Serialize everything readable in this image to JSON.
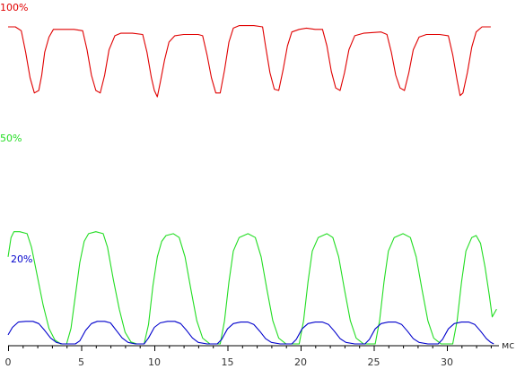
{
  "chart_data": {
    "type": "line",
    "title": "",
    "xlabel": "",
    "ylabel": "",
    "x_unit": "мс",
    "xlim": [
      0,
      33.5
    ],
    "xticks": [
      {
        "value": 0,
        "label": "0"
      },
      {
        "value": 5,
        "label": "5"
      },
      {
        "value": 10,
        "label": "10"
      },
      {
        "value": 15,
        "label": "15"
      },
      {
        "value": 20,
        "label": "20"
      },
      {
        "value": 25,
        "label": "25"
      },
      {
        "value": 30,
        "label": "30"
      }
    ],
    "grid": false,
    "legend": "none",
    "series": [
      {
        "name": "100%",
        "color": "#e00000",
        "values": [
          [
            0.0,
            100
          ],
          [
            0.5,
            100
          ],
          [
            0.9,
            97
          ],
          [
            1.2,
            80
          ],
          [
            1.5,
            60
          ],
          [
            1.8,
            48
          ],
          [
            2.1,
            50
          ],
          [
            2.3,
            62
          ],
          [
            2.5,
            80
          ],
          [
            2.8,
            92
          ],
          [
            3.1,
            98
          ],
          [
            3.6,
            98
          ],
          [
            4.5,
            98
          ],
          [
            5.1,
            97
          ],
          [
            5.4,
            82
          ],
          [
            5.7,
            62
          ],
          [
            6.0,
            50
          ],
          [
            6.3,
            48
          ],
          [
            6.6,
            62
          ],
          [
            6.9,
            82
          ],
          [
            7.3,
            93
          ],
          [
            7.7,
            95
          ],
          [
            8.5,
            95
          ],
          [
            9.2,
            94
          ],
          [
            9.5,
            80
          ],
          [
            9.8,
            60
          ],
          [
            10.0,
            50
          ],
          [
            10.2,
            45
          ],
          [
            10.4,
            56
          ],
          [
            10.7,
            74
          ],
          [
            11.0,
            88
          ],
          [
            11.4,
            93
          ],
          [
            12.0,
            94
          ],
          [
            13.0,
            94
          ],
          [
            13.3,
            93
          ],
          [
            13.6,
            78
          ],
          [
            13.9,
            60
          ],
          [
            14.2,
            48
          ],
          [
            14.5,
            48
          ],
          [
            14.8,
            66
          ],
          [
            15.1,
            88
          ],
          [
            15.4,
            99
          ],
          [
            15.8,
            101
          ],
          [
            16.8,
            101
          ],
          [
            17.4,
            100
          ],
          [
            17.6,
            85
          ],
          [
            17.9,
            64
          ],
          [
            18.2,
            51
          ],
          [
            18.5,
            50
          ],
          [
            18.8,
            66
          ],
          [
            19.1,
            85
          ],
          [
            19.4,
            96
          ],
          [
            19.9,
            98
          ],
          [
            20.4,
            99
          ],
          [
            21.0,
            98
          ],
          [
            21.5,
            98
          ],
          [
            21.8,
            85
          ],
          [
            22.1,
            65
          ],
          [
            22.4,
            52
          ],
          [
            22.7,
            50
          ],
          [
            23.0,
            64
          ],
          [
            23.3,
            82
          ],
          [
            23.7,
            93
          ],
          [
            24.3,
            95
          ],
          [
            25.5,
            96
          ],
          [
            25.9,
            94
          ],
          [
            26.2,
            80
          ],
          [
            26.5,
            62
          ],
          [
            26.8,
            52
          ],
          [
            27.1,
            50
          ],
          [
            27.4,
            64
          ],
          [
            27.7,
            82
          ],
          [
            28.1,
            92
          ],
          [
            28.6,
            94
          ],
          [
            29.5,
            94
          ],
          [
            30.1,
            93
          ],
          [
            30.4,
            78
          ],
          [
            30.7,
            58
          ],
          [
            30.9,
            46
          ],
          [
            31.1,
            48
          ],
          [
            31.4,
            64
          ],
          [
            31.7,
            84
          ],
          [
            32.0,
            96
          ],
          [
            32.4,
            100
          ],
          [
            33.0,
            100
          ]
        ]
      },
      {
        "name": "50%",
        "color": "#22dd22",
        "values": [
          [
            0.0,
            45
          ],
          [
            0.2,
            55
          ],
          [
            0.4,
            58
          ],
          [
            0.8,
            58
          ],
          [
            1.3,
            57
          ],
          [
            1.6,
            50
          ],
          [
            2.0,
            35
          ],
          [
            2.4,
            20
          ],
          [
            2.8,
            8
          ],
          [
            3.2,
            2
          ],
          [
            3.6,
            0
          ],
          [
            4.0,
            0
          ],
          [
            4.3,
            8
          ],
          [
            4.6,
            25
          ],
          [
            4.9,
            42
          ],
          [
            5.2,
            53
          ],
          [
            5.5,
            57
          ],
          [
            6.0,
            58
          ],
          [
            6.5,
            57
          ],
          [
            6.8,
            50
          ],
          [
            7.2,
            33
          ],
          [
            7.6,
            18
          ],
          [
            8.0,
            6
          ],
          [
            8.4,
            1
          ],
          [
            8.8,
            0
          ],
          [
            9.3,
            0
          ],
          [
            9.6,
            10
          ],
          [
            9.9,
            30
          ],
          [
            10.2,
            45
          ],
          [
            10.5,
            53
          ],
          [
            10.8,
            56
          ],
          [
            11.3,
            57
          ],
          [
            11.7,
            55
          ],
          [
            12.1,
            45
          ],
          [
            12.5,
            28
          ],
          [
            12.9,
            12
          ],
          [
            13.3,
            3
          ],
          [
            13.8,
            0
          ],
          [
            14.5,
            0
          ],
          [
            14.8,
            12
          ],
          [
            15.1,
            32
          ],
          [
            15.4,
            48
          ],
          [
            15.8,
            55
          ],
          [
            16.4,
            57
          ],
          [
            16.9,
            55
          ],
          [
            17.3,
            45
          ],
          [
            17.7,
            28
          ],
          [
            18.1,
            12
          ],
          [
            18.5,
            3
          ],
          [
            19.0,
            0
          ],
          [
            19.9,
            0
          ],
          [
            20.2,
            12
          ],
          [
            20.5,
            32
          ],
          [
            20.8,
            48
          ],
          [
            21.2,
            55
          ],
          [
            21.8,
            57
          ],
          [
            22.2,
            55
          ],
          [
            22.6,
            45
          ],
          [
            23.0,
            28
          ],
          [
            23.4,
            12
          ],
          [
            23.8,
            3
          ],
          [
            24.3,
            0
          ],
          [
            25.1,
            0
          ],
          [
            25.4,
            12
          ],
          [
            25.7,
            32
          ],
          [
            26.0,
            48
          ],
          [
            26.4,
            55
          ],
          [
            27.0,
            57
          ],
          [
            27.5,
            55
          ],
          [
            27.9,
            45
          ],
          [
            28.3,
            28
          ],
          [
            28.7,
            12
          ],
          [
            29.1,
            3
          ],
          [
            29.6,
            0
          ],
          [
            30.4,
            0
          ],
          [
            30.7,
            12
          ],
          [
            31.0,
            32
          ],
          [
            31.3,
            48
          ],
          [
            31.7,
            55
          ],
          [
            32.0,
            56
          ],
          [
            32.3,
            52
          ],
          [
            32.6,
            40
          ],
          [
            32.9,
            25
          ],
          [
            33.1,
            14
          ],
          [
            33.4,
            18
          ]
        ]
      },
      {
        "name": "20%",
        "color": "#0000cc",
        "values": [
          [
            0.0,
            12
          ],
          [
            0.3,
            22
          ],
          [
            0.7,
            29
          ],
          [
            1.2,
            30
          ],
          [
            1.7,
            30
          ],
          [
            2.1,
            27
          ],
          [
            2.5,
            18
          ],
          [
            2.9,
            8
          ],
          [
            3.3,
            2
          ],
          [
            3.7,
            0
          ],
          [
            4.6,
            0
          ],
          [
            4.9,
            4
          ],
          [
            5.3,
            18
          ],
          [
            5.7,
            27
          ],
          [
            6.1,
            30
          ],
          [
            6.6,
            30
          ],
          [
            7.0,
            28
          ],
          [
            7.4,
            18
          ],
          [
            7.8,
            8
          ],
          [
            8.2,
            2
          ],
          [
            8.7,
            0
          ],
          [
            9.3,
            0
          ],
          [
            9.6,
            8
          ],
          [
            10.0,
            22
          ],
          [
            10.4,
            28
          ],
          [
            10.9,
            30
          ],
          [
            11.4,
            30
          ],
          [
            11.8,
            27
          ],
          [
            12.2,
            18
          ],
          [
            12.6,
            8
          ],
          [
            13.0,
            2
          ],
          [
            13.6,
            0
          ],
          [
            14.3,
            0
          ],
          [
            14.6,
            6
          ],
          [
            15.0,
            20
          ],
          [
            15.4,
            27
          ],
          [
            15.9,
            29
          ],
          [
            16.4,
            29
          ],
          [
            16.8,
            26
          ],
          [
            17.2,
            17
          ],
          [
            17.6,
            7
          ],
          [
            18.0,
            2
          ],
          [
            18.6,
            0
          ],
          [
            19.4,
            0
          ],
          [
            19.7,
            6
          ],
          [
            20.1,
            20
          ],
          [
            20.5,
            27
          ],
          [
            21.0,
            29
          ],
          [
            21.5,
            29
          ],
          [
            21.9,
            26
          ],
          [
            22.3,
            17
          ],
          [
            22.7,
            7
          ],
          [
            23.1,
            2
          ],
          [
            23.7,
            0
          ],
          [
            24.4,
            0
          ],
          [
            24.7,
            6
          ],
          [
            25.1,
            20
          ],
          [
            25.5,
            27
          ],
          [
            26.0,
            29
          ],
          [
            26.5,
            29
          ],
          [
            26.9,
            26
          ],
          [
            27.3,
            17
          ],
          [
            27.7,
            7
          ],
          [
            28.1,
            2
          ],
          [
            28.7,
            0
          ],
          [
            29.4,
            0
          ],
          [
            29.7,
            6
          ],
          [
            30.1,
            20
          ],
          [
            30.5,
            27
          ],
          [
            31.0,
            29
          ],
          [
            31.5,
            29
          ],
          [
            31.9,
            26
          ],
          [
            32.3,
            17
          ],
          [
            32.7,
            7
          ],
          [
            33.0,
            2
          ],
          [
            33.2,
            0
          ]
        ]
      }
    ]
  }
}
